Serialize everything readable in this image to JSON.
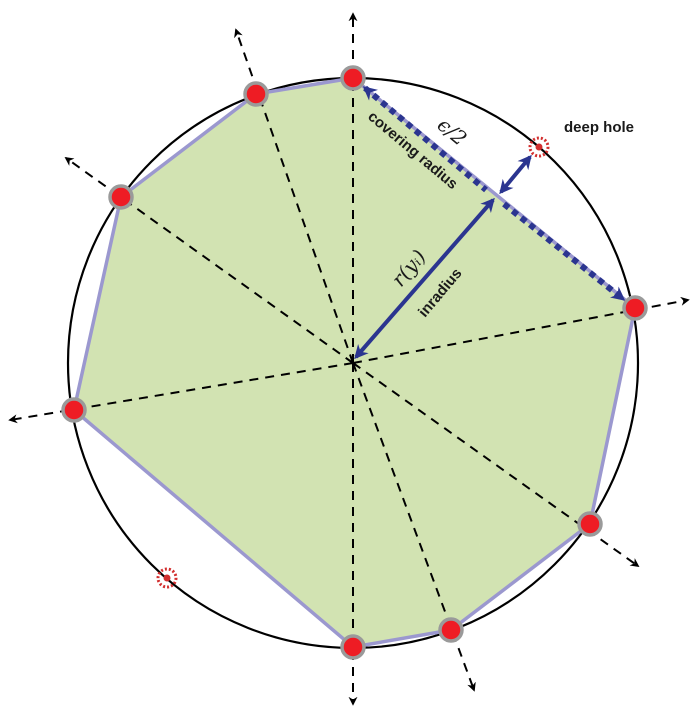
{
  "labels": {
    "deep_hole": "deep hole",
    "covering_radius": "covering radius",
    "epsilon_half": "ϵ/2",
    "inradius": "inradius",
    "r_of_y": "r(yᵢ)"
  },
  "colors": {
    "polygon_fill": "#d2e3b2",
    "polygon_edge": "#9b98cf",
    "vertex_fill": "#ee1c24",
    "vertex_ring": "#9a9a9a",
    "arrow": "#2b3590",
    "circle": "#000000",
    "deep_hole": "#d22e2e"
  }
}
